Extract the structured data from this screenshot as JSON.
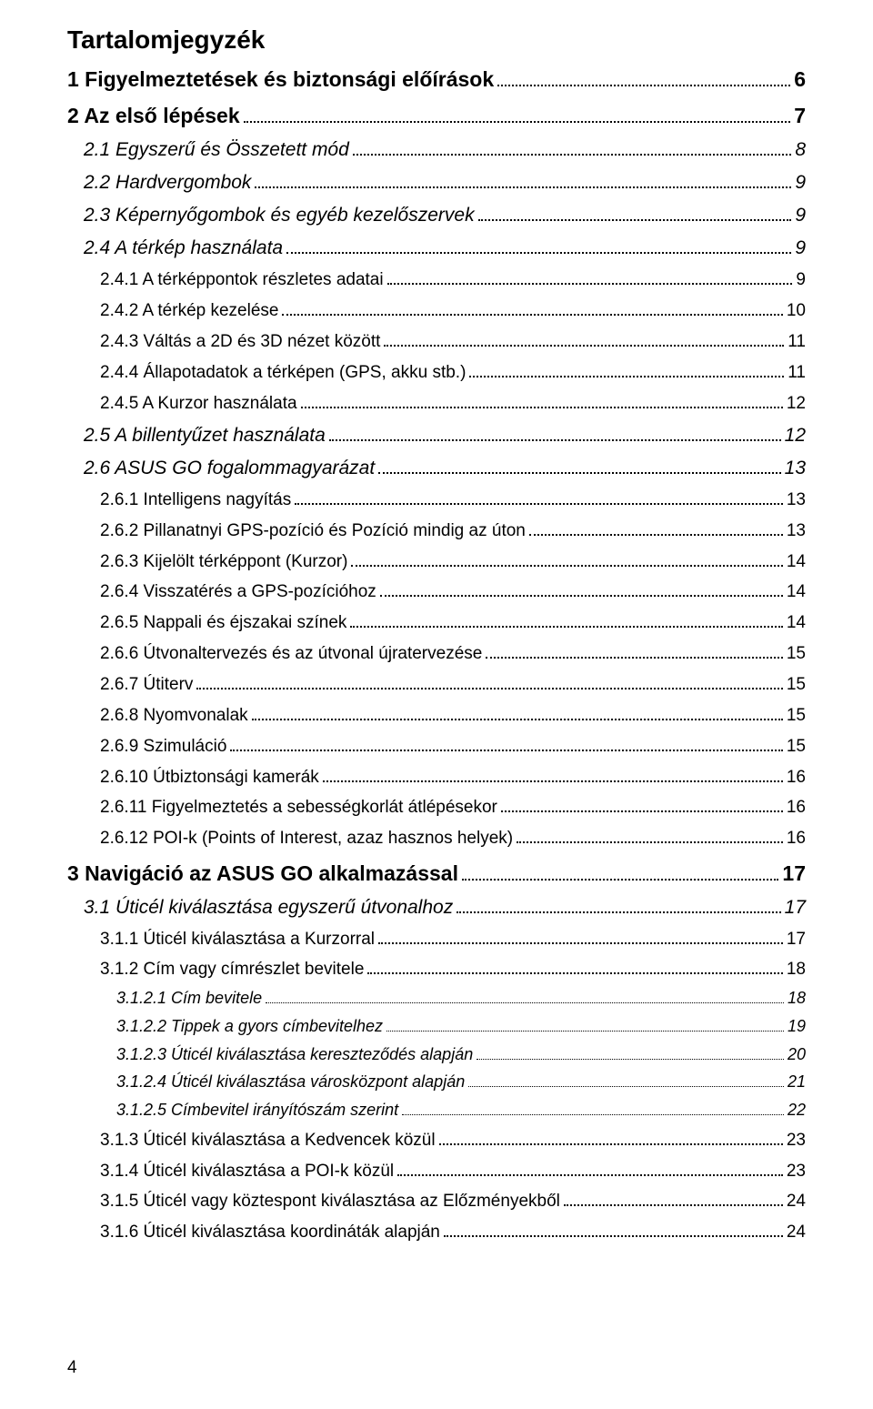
{
  "title": "Tartalomjegyzék",
  "footer_page_number": "4",
  "entries": [
    {
      "level": 1,
      "label": "1 Figyelmeztetések és biztonsági előírások",
      "page": "6"
    },
    {
      "level": 1,
      "label": "2 Az első lépések",
      "page": "7"
    },
    {
      "level": 2,
      "label": "2.1 Egyszerű és Összetett mód",
      "page": "8"
    },
    {
      "level": 2,
      "label": "2.2 Hardvergombok",
      "page": "9"
    },
    {
      "level": 2,
      "label": "2.3 Képernyőgombok és egyéb kezelőszervek",
      "page": "9"
    },
    {
      "level": 2,
      "label": "2.4 A térkép használata",
      "page": "9"
    },
    {
      "level": 3,
      "label": "2.4.1 A térképpontok részletes adatai",
      "page": "9"
    },
    {
      "level": 3,
      "label": "2.4.2 A térkép kezelése",
      "page": "10"
    },
    {
      "level": 3,
      "label": "2.4.3 Váltás a 2D és 3D nézet között",
      "page": "11"
    },
    {
      "level": 3,
      "label": "2.4.4 Állapotadatok a térképen (GPS, akku stb.)",
      "page": "11"
    },
    {
      "level": 3,
      "label": "2.4.5 A Kurzor használata",
      "page": "12"
    },
    {
      "level": 2,
      "label": "2.5 A billentyűzet használata",
      "page": "12"
    },
    {
      "level": 2,
      "label": "2.6 ASUS GO fogalommagyarázat",
      "page": "13"
    },
    {
      "level": 3,
      "label": "2.6.1 Intelligens nagyítás",
      "page": "13"
    },
    {
      "level": 3,
      "label": "2.6.2 Pillanatnyi GPS-pozíció és Pozíció mindig az úton",
      "page": "13"
    },
    {
      "level": 3,
      "label": "2.6.3 Kijelölt térképpont (Kurzor)",
      "page": "14"
    },
    {
      "level": 3,
      "label": "2.6.4 Visszatérés a GPS-pozícióhoz",
      "page": "14"
    },
    {
      "level": 3,
      "label": "2.6.5 Nappali és éjszakai színek",
      "page": "14"
    },
    {
      "level": 3,
      "label": "2.6.6 Útvonaltervezés és az útvonal újratervezése",
      "page": "15"
    },
    {
      "level": 3,
      "label": "2.6.7 Útiterv",
      "page": "15"
    },
    {
      "level": 3,
      "label": "2.6.8 Nyomvonalak",
      "page": "15"
    },
    {
      "level": 3,
      "label": "2.6.9 Szimuláció",
      "page": "15"
    },
    {
      "level": 3,
      "label": "2.6.10 Útbiztonsági kamerák",
      "page": "16"
    },
    {
      "level": 3,
      "label": "2.6.11 Figyelmeztetés a sebességkorlát átlépésekor",
      "page": "16"
    },
    {
      "level": 3,
      "label": "2.6.12 POI-k (Points of Interest, azaz hasznos helyek)",
      "page": "16"
    },
    {
      "level": 1,
      "label": "3 Navigáció az ASUS GO alkalmazással",
      "page": "17"
    },
    {
      "level": 2,
      "label": "3.1 Úticél kiválasztása egyszerű útvonalhoz",
      "page": "17"
    },
    {
      "level": 3,
      "label": "3.1.1 Úticél kiválasztása a Kurzorral",
      "page": "17"
    },
    {
      "level": 3,
      "label": "3.1.2 Cím vagy címrészlet bevitele",
      "page": "18"
    },
    {
      "level": 4,
      "label": "3.1.2.1 Cím bevitele",
      "page": "18"
    },
    {
      "level": 4,
      "label": "3.1.2.2 Tippek a gyors címbevitelhez",
      "page": "19"
    },
    {
      "level": 4,
      "label": "3.1.2.3 Úticél kiválasztása kereszteződés alapján",
      "page": "20"
    },
    {
      "level": 4,
      "label": "3.1.2.4 Úticél kiválasztása városközpont alapján",
      "page": "21"
    },
    {
      "level": 4,
      "label": "3.1.2.5 Címbevitel irányítószám szerint",
      "page": "22"
    },
    {
      "level": 3,
      "label": "3.1.3 Úticél kiválasztása a Kedvencek közül",
      "page": "23"
    },
    {
      "level": 3,
      "label": "3.1.4 Úticél kiválasztása a POI-k közül",
      "page": "23"
    },
    {
      "level": 3,
      "label": "3.1.5 Úticél vagy köztespont kiválasztása az Előzményekből",
      "page": "24"
    },
    {
      "level": 3,
      "label": "3.1.6 Úticél kiválasztása koordináták alapján",
      "page": "24"
    }
  ]
}
